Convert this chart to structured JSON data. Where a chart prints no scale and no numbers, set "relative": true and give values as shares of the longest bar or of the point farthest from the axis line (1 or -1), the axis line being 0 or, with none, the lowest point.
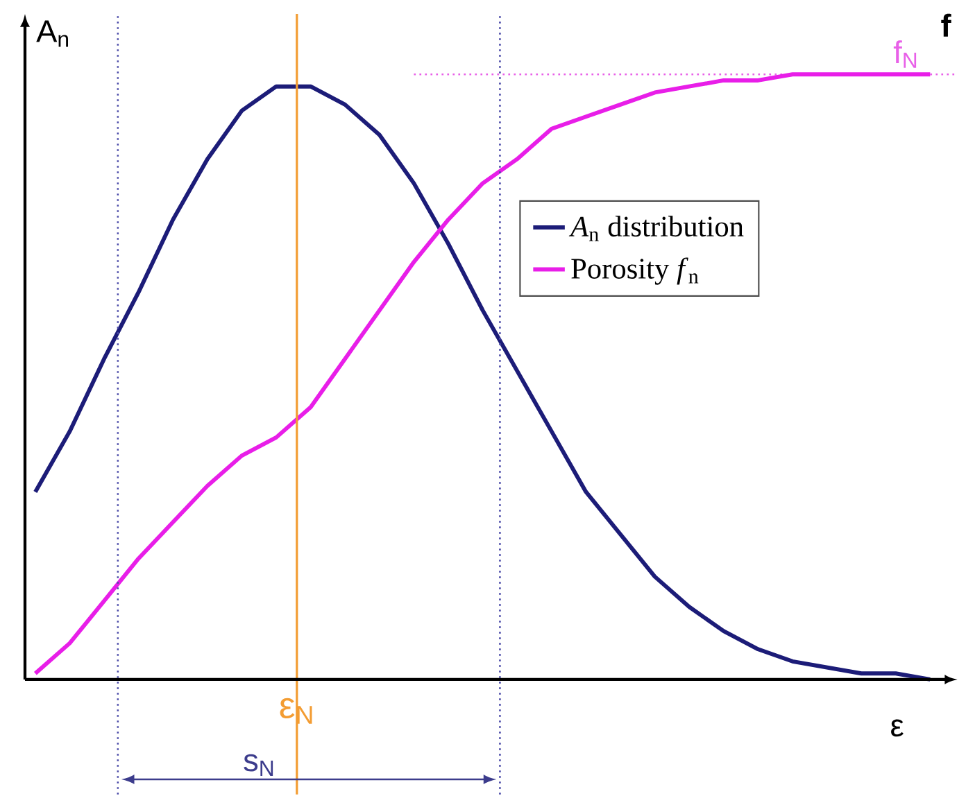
{
  "chart_data": {
    "type": "line",
    "relative": true,
    "xlabel": "ε",
    "ylabel": "A$_{n}$",
    "y2label": "f",
    "categories": [
      null,
      null,
      null,
      null,
      null,
      null,
      null,
      null,
      null,
      null,
      null,
      null,
      null,
      null,
      null,
      null,
      null,
      null,
      null,
      null,
      null,
      null,
      null,
      null,
      null,
      null,
      null
    ],
    "series": [
      {
        "name": "*A*$_{n}$ distribution",
        "color": "#1c1c78",
        "values": [
          0.31,
          0.41,
          0.53,
          0.64,
          0.76,
          0.86,
          0.94,
          0.98,
          0.98,
          0.95,
          0.9,
          0.82,
          0.72,
          0.61,
          0.51,
          0.41,
          0.31,
          0.24,
          0.17,
          0.12,
          0.08,
          0.05,
          0.03,
          0.02,
          0.01,
          0.01,
          0
        ]
      },
      {
        "name": "Porosity *f*$_{n}$",
        "color": "#e81ee8",
        "values": [
          0.01,
          0.06,
          0.13,
          0.2,
          0.26,
          0.32,
          0.37,
          0.4,
          0.45,
          0.53,
          0.61,
          0.69,
          0.76,
          0.82,
          0.86,
          0.91,
          0.93,
          0.95,
          0.97,
          0.98,
          0.99,
          0.99,
          1,
          1,
          1,
          1,
          1
        ]
      }
    ],
    "ref_lines": [
      {
        "axis": "y",
        "value": 1.0,
        "label": "f$_{N}$",
        "color": "#e860e8",
        "line_style": "dotted"
      }
    ],
    "annotations": [
      "ε$_{N}$",
      "s$_{N}$"
    ],
    "legend": "right",
    "marker": "none",
    "line_style": "solid"
  }
}
